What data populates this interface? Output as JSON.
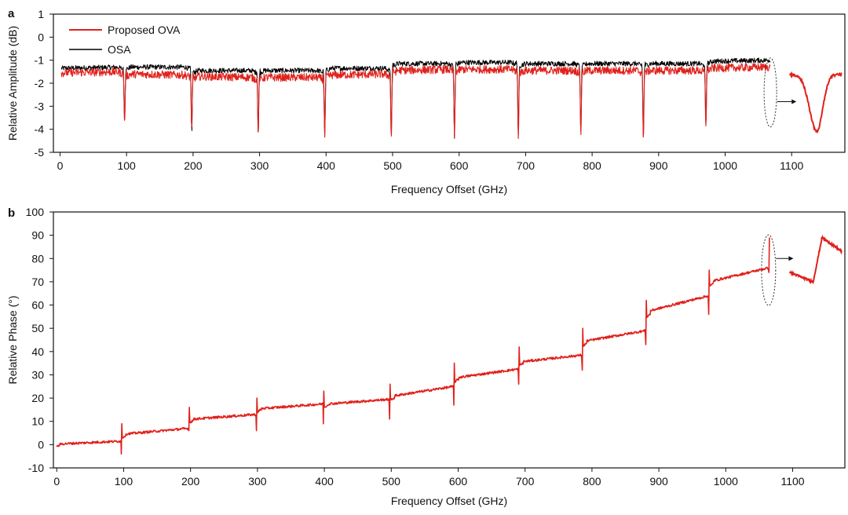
{
  "chart_data": [
    {
      "panel": "a",
      "type": "line",
      "xlabel": "Frequency Offset (GHz)",
      "ylabel": "Relative Amplitude (dB)",
      "xlim": [
        -10,
        1180
      ],
      "ylim": [
        -5,
        1
      ],
      "x_ticks": [
        0,
        100,
        200,
        300,
        400,
        500,
        600,
        700,
        800,
        900,
        1000,
        1100
      ],
      "y_ticks": [
        -5,
        -4,
        -3,
        -2,
        -1,
        0,
        1
      ],
      "legend": {
        "placement": "top-left",
        "entries": [
          "Proposed OVA",
          "OSA"
        ]
      },
      "series": [
        {
          "name": "OSA",
          "color": "#000000",
          "x": [
            2,
            97,
            99,
            197,
            199,
            297,
            299,
            397,
            399,
            497,
            499,
            592,
            594,
            688,
            690,
            782,
            784,
            876,
            878,
            970,
            972,
            1068
          ],
          "y": [
            -1.35,
            -1.3,
            -1.3,
            -1.3,
            -1.45,
            -1.45,
            -1.45,
            -1.45,
            -1.35,
            -1.35,
            -1.15,
            -1.15,
            -1.1,
            -1.1,
            -1.15,
            -1.15,
            -1.15,
            -1.15,
            -1.15,
            -1.15,
            -1.05,
            -1.0
          ]
        },
        {
          "name": "Proposed OVA",
          "color": "#e0211c",
          "x": [
            2,
            97,
            99,
            197,
            199,
            297,
            299,
            397,
            399,
            497,
            499,
            592,
            594,
            688,
            690,
            782,
            784,
            876,
            878,
            970,
            972,
            1068
          ],
          "y": [
            -1.55,
            -1.5,
            -1.6,
            -1.65,
            -1.7,
            -1.75,
            -1.75,
            -1.75,
            -1.65,
            -1.6,
            -1.45,
            -1.4,
            -1.4,
            -1.4,
            -1.45,
            -1.45,
            -1.45,
            -1.45,
            -1.45,
            -1.45,
            -1.35,
            -1.3
          ]
        }
      ],
      "dips": {
        "x": [
          97,
          198,
          298,
          398,
          498,
          593,
          689,
          783,
          877,
          971
        ],
        "y": [
          -3.7,
          -4.05,
          -4.2,
          -4.35,
          -4.4,
          -4.4,
          -4.35,
          -4.25,
          -4.4,
          -3.9
        ]
      }
    },
    {
      "panel": "b",
      "type": "line",
      "xlabel": "Frequency Offset (GHz)",
      "ylabel": "Relative Phase (°)",
      "xlim": [
        -5,
        1178
      ],
      "ylim": [
        -10,
        100
      ],
      "x_ticks": [
        0,
        100,
        200,
        300,
        400,
        500,
        600,
        700,
        800,
        900,
        1000,
        1100
      ],
      "y_ticks": [
        -10,
        0,
        10,
        20,
        30,
        40,
        50,
        60,
        70,
        80,
        90,
        100
      ],
      "series": [
        {
          "name": "Proposed OVA",
          "color": "#e0211c",
          "segments": [
            {
              "x0": 0,
              "x1": 96,
              "y0": 0,
              "y1": 1.5,
              "jump_to": -4,
              "peak": 9
            },
            {
              "x0": 98,
              "x1": 197,
              "y0": 4,
              "y1": 7,
              "jump_to": 6,
              "peak": 16
            },
            {
              "x0": 199,
              "x1": 298,
              "y0": 10.5,
              "y1": 13,
              "jump_to": 6,
              "peak": 20
            },
            {
              "x0": 300,
              "x1": 398,
              "y0": 15,
              "y1": 17.5,
              "jump_to": 9,
              "peak": 23
            },
            {
              "x0": 400,
              "x1": 497,
              "y0": 17,
              "y1": 19.5,
              "jump_to": 11,
              "peak": 26
            },
            {
              "x0": 499,
              "x1": 593,
              "y0": 20,
              "y1": 25,
              "jump_to": 17,
              "peak": 35
            },
            {
              "x0": 595,
              "x1": 690,
              "y0": 28,
              "y1": 32.5,
              "jump_to": 26,
              "peak": 42
            },
            {
              "x0": 692,
              "x1": 785,
              "y0": 35,
              "y1": 38.5,
              "jump_to": 32,
              "peak": 50
            },
            {
              "x0": 787,
              "x1": 880,
              "y0": 43.5,
              "y1": 49,
              "jump_to": 43,
              "peak": 62
            },
            {
              "x0": 882,
              "x1": 974,
              "y0": 56,
              "y1": 64,
              "jump_to": 56,
              "peak": 75
            },
            {
              "x0": 976,
              "x1": 1064,
              "y0": 69,
              "y1": 76,
              "jump_to": 74,
              "peak": 89
            }
          ]
        }
      ]
    }
  ],
  "panels": {
    "a_letter": "a",
    "b_letter": "b"
  },
  "legend": {
    "ova_label": "Proposed OVA",
    "osa_label": "OSA"
  },
  "axes": {
    "a_xlabel": "Frequency Offset (GHz)",
    "a_ylabel": "Relative Amplitude (dB)",
    "b_xlabel": "Frequency Offset (GHz)",
    "b_ylabel": "Relative Phase (°)"
  },
  "colors": {
    "ova": "#e0211c",
    "osa": "#000000"
  }
}
